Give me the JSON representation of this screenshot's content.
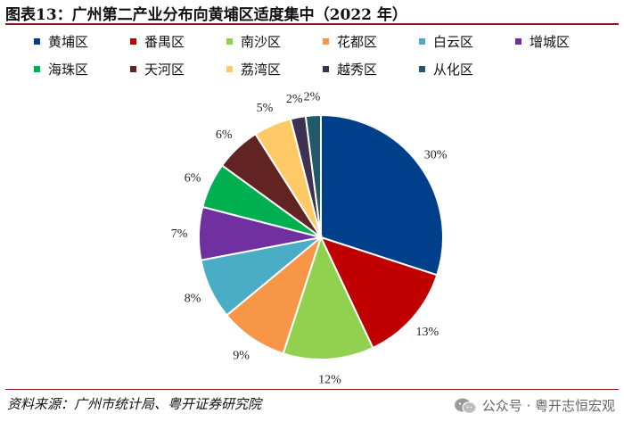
{
  "title": "图表13：广州第二产业分布向黄埔区适度集中（2022 年）",
  "source": "资料来源：广州市统计局、粤开证券研究院",
  "watermark": "公众号 · 粤开志恒宏观",
  "chart_data": {
    "type": "pie",
    "categories": [
      "黄埔区",
      "番禺区",
      "南沙区",
      "花都区",
      "白云区",
      "增城区",
      "海珠区",
      "天河区",
      "荔湾区",
      "越秀区",
      "从化区"
    ],
    "values": [
      30,
      13,
      12,
      9,
      8,
      7,
      6,
      6,
      5,
      2,
      2
    ],
    "labels": [
      "30%",
      "13%",
      "12%",
      "9%",
      "8%",
      "7%",
      "6%",
      "6%",
      "5%",
      "2%",
      "2%"
    ],
    "colors": [
      "#003f8a",
      "#c00000",
      "#92d050",
      "#f79646",
      "#4bacc6",
      "#7030a0",
      "#00b050",
      "#622423",
      "#ffc966",
      "#3f3151",
      "#215968"
    ],
    "legend_position": "top",
    "start_angle": "12 o'clock",
    "direction": "clockwise"
  }
}
